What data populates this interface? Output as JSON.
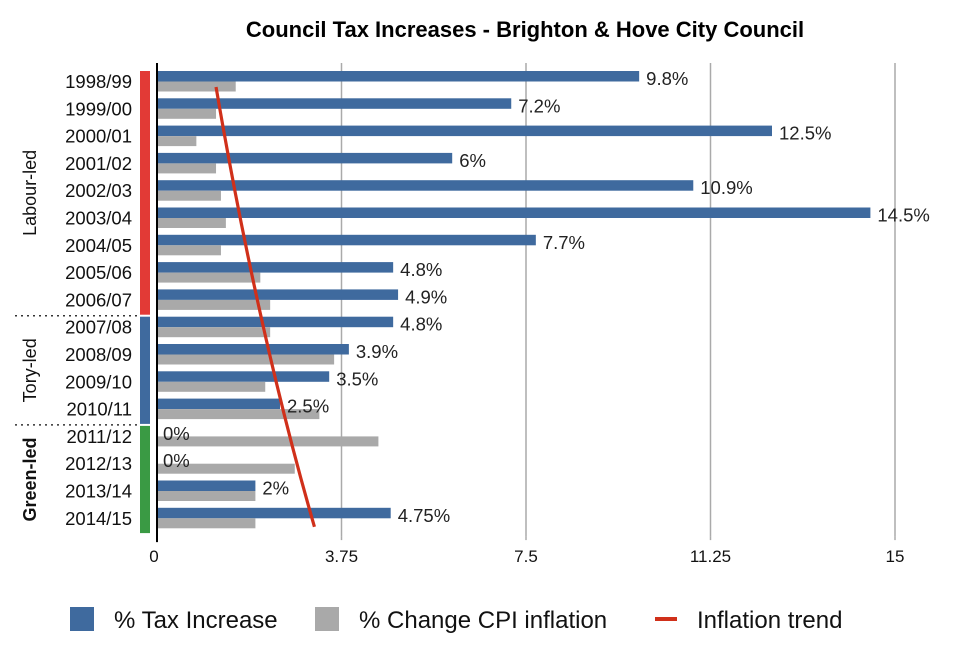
{
  "chart_data": {
    "type": "bar",
    "orientation": "horizontal",
    "title": "Council Tax Increases - Brighton & Hove City Council",
    "xlabel": "",
    "ylabel": "",
    "xlim": [
      0,
      15
    ],
    "x_ticks": [
      0,
      3.75,
      7.5,
      11.25,
      15
    ],
    "x_tick_labels": [
      "0",
      "3.75",
      "7.5",
      "11.25",
      "15"
    ],
    "grid": true,
    "legend_position": "bottom",
    "categories": [
      "1998/99",
      "1999/00",
      "2000/01",
      "2001/02",
      "2002/03",
      "2003/04",
      "2004/05",
      "2005/06",
      "2006/07",
      "2007/08",
      "2008/09",
      "2009/10",
      "2010/11",
      "2011/12",
      "2012/13",
      "2013/14",
      "2014/15"
    ],
    "series": [
      {
        "name": "% Tax Increase",
        "color": "#3f6a9e",
        "values": [
          9.8,
          7.2,
          12.5,
          6,
          10.9,
          14.5,
          7.7,
          4.8,
          4.9,
          4.8,
          3.9,
          3.5,
          2.5,
          0,
          0,
          2,
          4.75
        ],
        "labels": [
          "9.8%",
          "7.2%",
          "12.5%",
          "6%",
          "10.9%",
          "14.5%",
          "7.7%",
          "4.8%",
          "4.9%",
          "4.8%",
          "3.9%",
          "3.5%",
          "2.5%",
          "0%",
          "0%",
          "2%",
          "4.75%"
        ]
      },
      {
        "name": "% Change CPI inflation",
        "color": "#a9a9a9",
        "values": [
          1.6,
          1.2,
          0.8,
          1.2,
          1.3,
          1.4,
          1.3,
          2.1,
          2.3,
          2.3,
          3.6,
          2.2,
          3.3,
          4.5,
          2.8,
          2.0,
          2.0
        ]
      },
      {
        "name": "Inflation trend",
        "type": "line",
        "color": "#d0301a",
        "start": {
          "category": "1998/99",
          "value": 1.2
        },
        "end": {
          "category": "2014/15",
          "value": 3.2
        }
      }
    ],
    "groups": [
      {
        "label": "Labour-led",
        "color": "#e23a36",
        "from": "1998/99",
        "to": "2006/07",
        "bold": false
      },
      {
        "label": "Tory-led",
        "color": "#3f6a9e",
        "from": "2007/08",
        "to": "2010/11",
        "bold": false
      },
      {
        "label": "Green-led",
        "color": "#3a9a44",
        "from": "2011/12",
        "to": "2014/15",
        "bold": true
      }
    ],
    "legend": [
      {
        "label": "% Tax Increase",
        "swatch": "square",
        "color": "#3f6a9e"
      },
      {
        "label": "% Change CPI inflation",
        "swatch": "square",
        "color": "#a9a9a9"
      },
      {
        "label": "Inflation trend",
        "swatch": "line",
        "color": "#d0301a"
      }
    ]
  }
}
